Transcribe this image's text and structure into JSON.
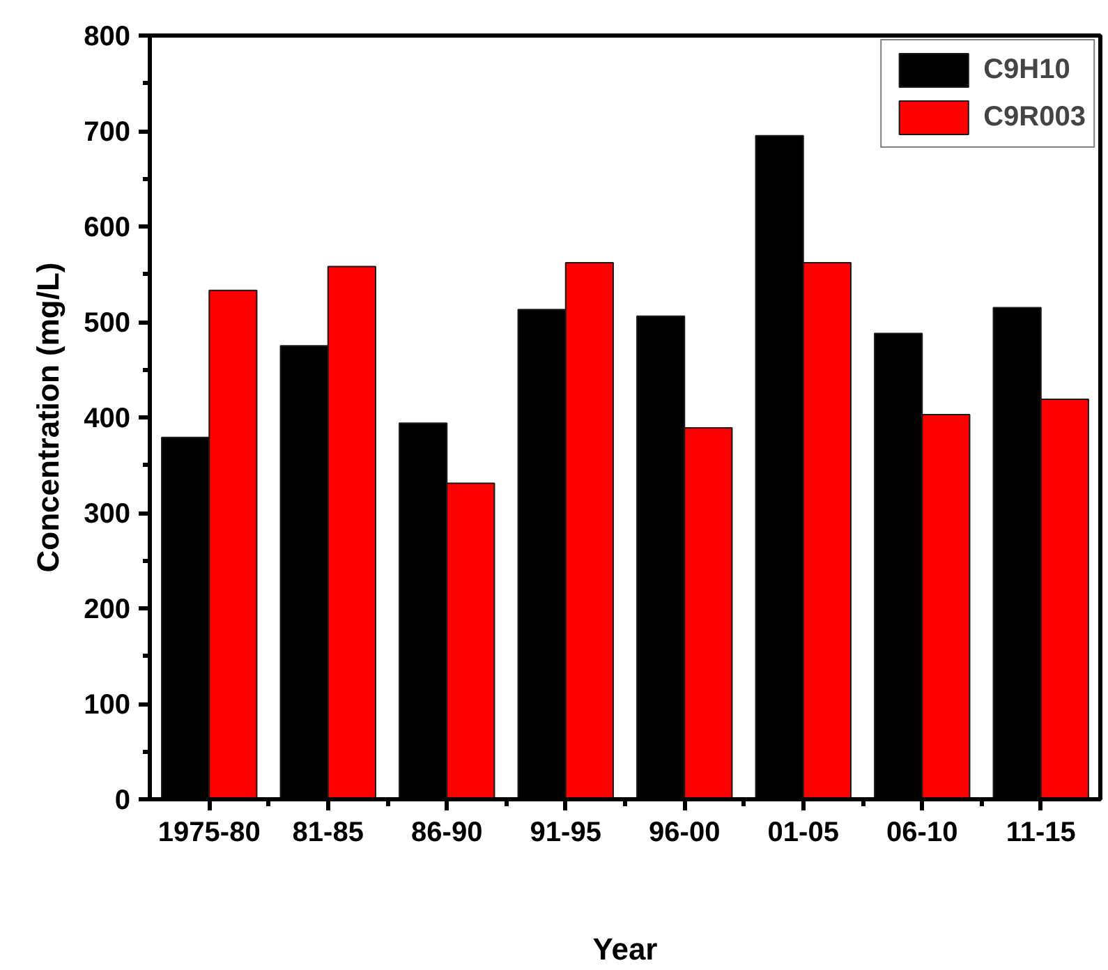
{
  "chart_data": {
    "type": "bar",
    "xlabel": "Year",
    "ylabel": "Concentration (mg/L)",
    "categories": [
      "1975-80",
      "81-85",
      "86-90",
      "91-95",
      "96-00",
      "01-05",
      "06-10",
      "11-15"
    ],
    "series": [
      {
        "name": "C9H10",
        "color": "#000000",
        "values": [
          379,
          475,
          394,
          513,
          506,
          695,
          488,
          515
        ]
      },
      {
        "name": "C9R003",
        "color": "#ff0000",
        "values": [
          533,
          558,
          331,
          562,
          389,
          562,
          403,
          419
        ]
      }
    ],
    "ylim": [
      0,
      800
    ],
    "yticks": [
      0,
      {
        "value": 50,
        "label": null
      },
      100,
      {
        "value": 150,
        "label": null
      },
      200,
      {
        "value": 250,
        "label": null
      },
      300,
      {
        "value": 350,
        "label": null
      },
      400,
      {
        "value": 450,
        "label": null
      },
      500,
      {
        "value": 550,
        "label": null
      },
      600,
      {
        "value": 650,
        "label": null
      },
      700,
      {
        "value": 750,
        "label": null
      },
      800
    ],
    "legend": "top right"
  }
}
